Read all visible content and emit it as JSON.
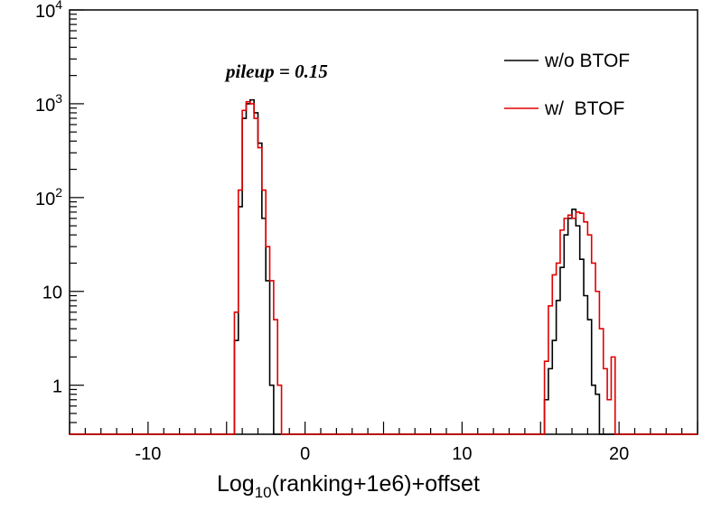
{
  "chart_data": {
    "type": "line",
    "annotation": "pileup = 0.15",
    "xlabel": {
      "prefix": "Log",
      "subscript": "10",
      "suffix": "(ranking+1e6)+offset"
    },
    "ylabel": "",
    "xlim": [
      -15,
      25
    ],
    "ylim": [
      0.3,
      10000
    ],
    "y_scale": "log",
    "x_ticks": [
      {
        "value": -10,
        "label": "-10"
      },
      {
        "value": 0,
        "label": "0"
      },
      {
        "value": 10,
        "label": "10"
      },
      {
        "value": 20,
        "label": "20"
      }
    ],
    "y_ticks": [
      {
        "value": 1,
        "base": "1",
        "exp": ""
      },
      {
        "value": 10,
        "base": "10",
        "exp": ""
      },
      {
        "value": 100,
        "base": "10",
        "exp": "2"
      },
      {
        "value": 1000,
        "base": "10",
        "exp": "3"
      },
      {
        "value": 10000,
        "base": "10",
        "exp": "4"
      }
    ],
    "legend_position": "top-right",
    "bin_width": 0.25,
    "series": [
      {
        "name": "w/o BTOF",
        "color": "#000000",
        "bins": [
          [
            -4.5,
            3
          ],
          [
            -4.25,
            80
          ],
          [
            -4.0,
            700
          ],
          [
            -3.75,
            1000
          ],
          [
            -3.5,
            1100
          ],
          [
            -3.25,
            800
          ],
          [
            -3.0,
            380
          ],
          [
            -2.75,
            60
          ],
          [
            -2.5,
            13
          ],
          [
            -2.25,
            1
          ],
          [
            15.25,
            0.7
          ],
          [
            15.5,
            1.5
          ],
          [
            15.75,
            3
          ],
          [
            16.0,
            8
          ],
          [
            16.25,
            18
          ],
          [
            16.5,
            40
          ],
          [
            16.75,
            60
          ],
          [
            17.0,
            75
          ],
          [
            17.25,
            50
          ],
          [
            17.5,
            22
          ],
          [
            17.75,
            9
          ],
          [
            18.0,
            5
          ],
          [
            18.25,
            1
          ],
          [
            18.5,
            0.8
          ]
        ]
      },
      {
        "name": "w/  BTOF",
        "color": "#e00000",
        "bins": [
          [
            -4.5,
            6
          ],
          [
            -4.25,
            120
          ],
          [
            -4.0,
            850
          ],
          [
            -3.75,
            1050
          ],
          [
            -3.5,
            1000
          ],
          [
            -3.25,
            700
          ],
          [
            -3.0,
            340
          ],
          [
            -2.75,
            120
          ],
          [
            -2.5,
            30
          ],
          [
            -2.25,
            13
          ],
          [
            -2.0,
            5
          ],
          [
            -1.75,
            1
          ],
          [
            15.25,
            1.8
          ],
          [
            15.5,
            7
          ],
          [
            15.75,
            15
          ],
          [
            16.0,
            20
          ],
          [
            16.25,
            45
          ],
          [
            16.5,
            60
          ],
          [
            16.75,
            65
          ],
          [
            17.0,
            60
          ],
          [
            17.25,
            70
          ],
          [
            17.5,
            68
          ],
          [
            17.75,
            55
          ],
          [
            18.0,
            40
          ],
          [
            18.25,
            20
          ],
          [
            18.5,
            10
          ],
          [
            18.75,
            4
          ],
          [
            19.0,
            1.5
          ],
          [
            19.25,
            0.7
          ],
          [
            19.5,
            2
          ]
        ]
      }
    ]
  }
}
